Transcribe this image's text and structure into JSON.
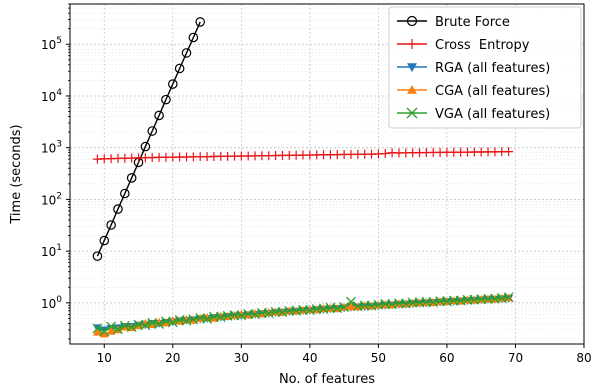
{
  "chart_data": {
    "type": "line",
    "title": "",
    "xlabel": "No. of features",
    "ylabel": "Time  (seconds)",
    "x_scale": "linear",
    "y_scale": "log",
    "xlim": [
      5,
      80
    ],
    "ylim": [
      0.16,
      600000
    ],
    "xticks": [
      "10",
      "20",
      "30",
      "40",
      "50",
      "60",
      "70",
      "80"
    ],
    "yticks": [
      {
        "value": 1,
        "base": "10",
        "exp": "0"
      },
      {
        "value": 10,
        "base": "10",
        "exp": "1"
      },
      {
        "value": 100,
        "base": "10",
        "exp": "2"
      },
      {
        "value": 1000,
        "base": "10",
        "exp": "3"
      },
      {
        "value": 10000,
        "base": "10",
        "exp": "4"
      },
      {
        "value": 100000,
        "base": "10",
        "exp": "5"
      }
    ],
    "grid": true,
    "legend_position": "top-right",
    "series": [
      {
        "name": "Brute Force",
        "color": "#000000",
        "marker": "circle-open",
        "x": [
          9,
          10,
          11,
          12,
          13,
          14,
          15,
          16,
          17,
          18,
          19,
          20,
          21,
          22,
          23,
          24
        ],
        "y": [
          8,
          16,
          32,
          65,
          130,
          260,
          520,
          1050,
          2100,
          4200,
          8500,
          17000,
          34000,
          68000,
          135000,
          270000
        ]
      },
      {
        "name": "Cross  Entropy",
        "color": "#e8161b",
        "marker": "plus",
        "x": [
          9,
          10,
          11,
          12,
          13,
          14,
          15,
          16,
          17,
          18,
          19,
          20,
          21,
          22,
          23,
          24,
          25,
          26,
          27,
          28,
          29,
          30,
          31,
          32,
          33,
          34,
          35,
          36,
          37,
          38,
          39,
          40,
          41,
          42,
          43,
          44,
          45,
          46,
          47,
          48,
          49,
          50,
          51,
          52,
          53,
          54,
          55,
          56,
          57,
          58,
          59,
          60,
          61,
          62,
          63,
          64,
          65,
          66,
          67,
          68,
          69
        ],
        "y": [
          600,
          610,
          615,
          620,
          625,
          630,
          635,
          640,
          645,
          650,
          650,
          655,
          660,
          660,
          665,
          670,
          670,
          675,
          680,
          680,
          685,
          690,
          690,
          695,
          700,
          700,
          705,
          710,
          710,
          715,
          720,
          720,
          725,
          730,
          730,
          735,
          740,
          740,
          745,
          750,
          750,
          760,
          770,
          800,
          790,
          795,
          800,
          800,
          805,
          810,
          810,
          815,
          815,
          820,
          820,
          825,
          825,
          830,
          830,
          835,
          840
        ]
      },
      {
        "name": "RGA (all features)",
        "color": "#1f77b4",
        "marker": "triangle-down",
        "x": [
          9,
          10,
          11,
          12,
          13,
          14,
          15,
          16,
          17,
          18,
          19,
          20,
          21,
          22,
          23,
          24,
          25,
          26,
          27,
          28,
          29,
          30,
          31,
          32,
          33,
          34,
          35,
          36,
          37,
          38,
          39,
          40,
          41,
          42,
          43,
          44,
          45,
          46,
          47,
          48,
          49,
          50,
          51,
          52,
          53,
          54,
          55,
          56,
          57,
          58,
          59,
          60,
          61,
          62,
          63,
          64,
          65,
          66,
          67,
          68,
          69
        ],
        "y": [
          0.33,
          0.3,
          0.32,
          0.33,
          0.35,
          0.35,
          0.37,
          0.38,
          0.4,
          0.4,
          0.42,
          0.43,
          0.45,
          0.46,
          0.47,
          0.49,
          0.5,
          0.52,
          0.53,
          0.55,
          0.56,
          0.57,
          0.59,
          0.6,
          0.62,
          0.63,
          0.65,
          0.66,
          0.68,
          0.69,
          0.71,
          0.72,
          0.74,
          0.75,
          0.77,
          0.78,
          0.8,
          0.82,
          0.83,
          0.85,
          0.87,
          0.88,
          0.9,
          0.92,
          0.94,
          0.95,
          0.97,
          0.99,
          1.0,
          1.02,
          1.04,
          1.06,
          1.07,
          1.09,
          1.11,
          1.13,
          1.15,
          1.17,
          1.18,
          1.2,
          1.22
        ]
      },
      {
        "name": "CGA (all features)",
        "color": "#ff7f0e",
        "marker": "triangle-up",
        "x": [
          9,
          10,
          11,
          12,
          13,
          14,
          15,
          16,
          17,
          18,
          19,
          20,
          21,
          22,
          23,
          24,
          25,
          26,
          27,
          28,
          29,
          30,
          31,
          32,
          33,
          34,
          35,
          36,
          37,
          38,
          39,
          40,
          41,
          42,
          43,
          44,
          45,
          46,
          47,
          48,
          49,
          50,
          51,
          52,
          53,
          54,
          55,
          56,
          57,
          58,
          59,
          60,
          61,
          62,
          63,
          64,
          65,
          66,
          67,
          68,
          69
        ],
        "y": [
          0.27,
          0.25,
          0.28,
          0.3,
          0.34,
          0.33,
          0.36,
          0.4,
          0.38,
          0.42,
          0.41,
          0.45,
          0.44,
          0.47,
          0.46,
          0.5,
          0.52,
          0.5,
          0.55,
          0.54,
          0.57,
          0.6,
          0.58,
          0.62,
          0.61,
          0.65,
          0.66,
          0.65,
          0.7,
          0.69,
          0.72,
          0.74,
          0.73,
          0.77,
          0.78,
          0.77,
          0.82,
          0.84,
          0.83,
          0.88,
          0.86,
          0.9,
          0.92,
          0.91,
          0.96,
          0.95,
          0.99,
          1.0,
          1.02,
          1.01,
          1.06,
          1.05,
          1.1,
          1.08,
          1.13,
          1.12,
          1.16,
          1.18,
          1.17,
          1.22,
          1.25
        ]
      },
      {
        "name": "VGA (all features)",
        "color": "#2ca02c",
        "marker": "x",
        "x": [
          9,
          10,
          11,
          12,
          13,
          14,
          15,
          16,
          17,
          18,
          19,
          20,
          21,
          22,
          23,
          24,
          25,
          26,
          27,
          28,
          29,
          30,
          31,
          32,
          33,
          34,
          35,
          36,
          37,
          38,
          39,
          40,
          41,
          42,
          43,
          44,
          45,
          46,
          47,
          48,
          49,
          50,
          51,
          52,
          53,
          54,
          55,
          56,
          57,
          58,
          59,
          60,
          61,
          62,
          63,
          64,
          65,
          66,
          67,
          68,
          69
        ],
        "y": [
          0.32,
          0.28,
          0.35,
          0.31,
          0.36,
          0.34,
          0.38,
          0.37,
          0.41,
          0.39,
          0.44,
          0.42,
          0.47,
          0.45,
          0.48,
          0.51,
          0.49,
          0.54,
          0.53,
          0.56,
          0.58,
          0.57,
          0.61,
          0.6,
          0.64,
          0.63,
          0.67,
          0.66,
          0.7,
          0.7,
          0.73,
          0.72,
          0.76,
          0.76,
          0.8,
          0.79,
          0.83,
          1.05,
          0.86,
          0.89,
          0.88,
          0.92,
          0.95,
          0.94,
          0.98,
          0.97,
          1.01,
          1.02,
          1.04,
          1.03,
          1.08,
          1.07,
          1.11,
          1.1,
          1.14,
          1.15,
          1.17,
          1.19,
          1.2,
          1.24,
          1.28
        ]
      }
    ]
  }
}
